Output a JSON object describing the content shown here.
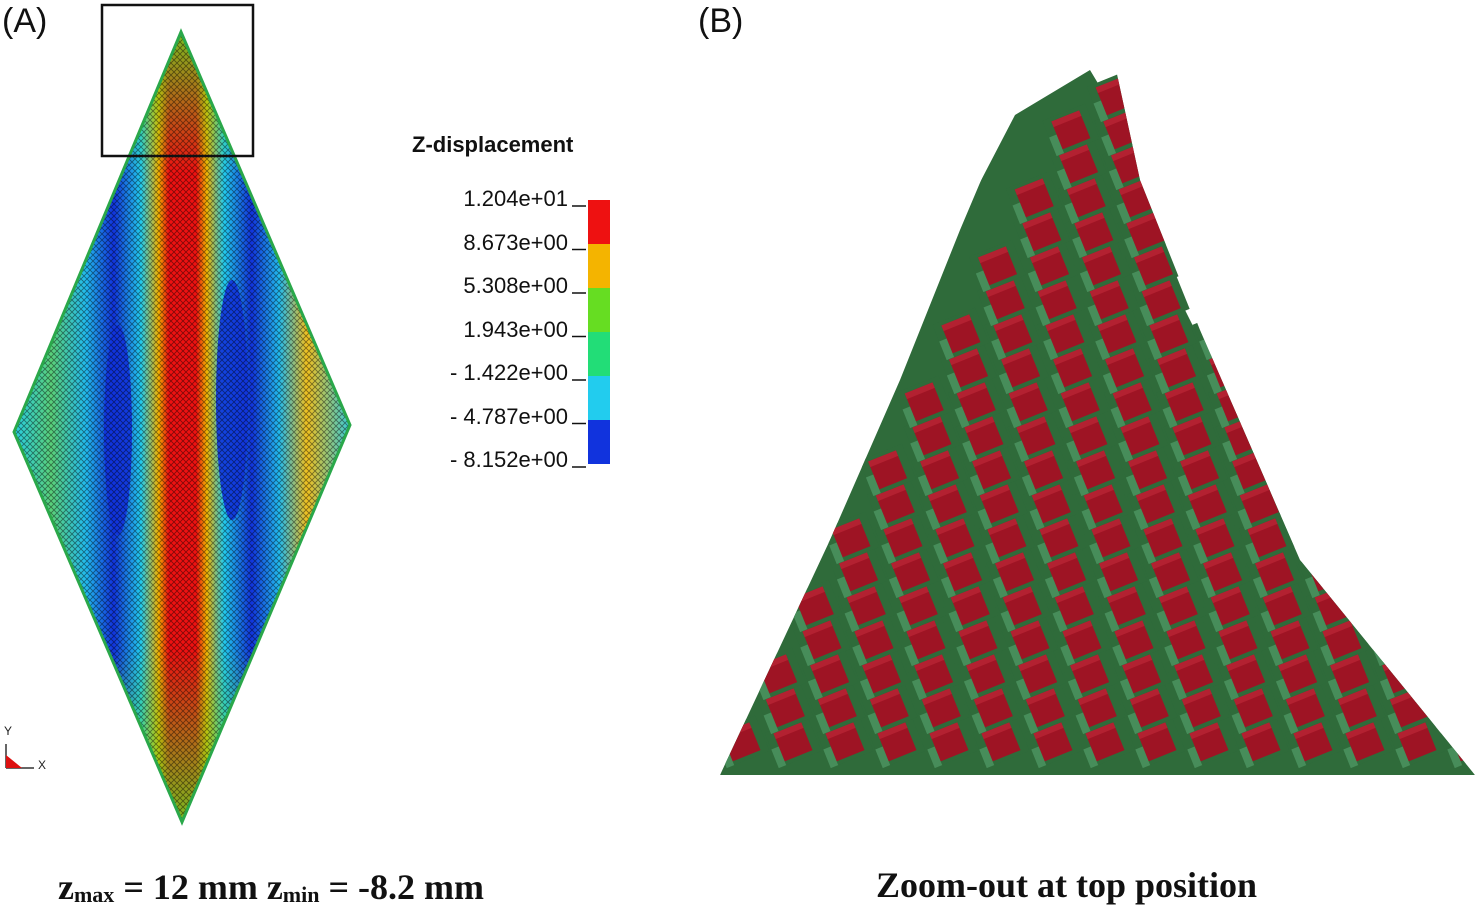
{
  "panels": {
    "a_label": "(A)",
    "b_label": "(B)"
  },
  "legend": {
    "title": "Z-displacement",
    "values": [
      "1.204e+01",
      "8.673e+00",
      "5.308e+00",
      "1.943e+00",
      "- 1.422e+00",
      "- 4.787e+00",
      "- 8.152e+00"
    ],
    "colors": [
      "#ee1111",
      "#f4b400",
      "#66dd22",
      "#22dd77",
      "#22ccee",
      "#1133dd"
    ]
  },
  "axes": {
    "y": "Y",
    "x": "X"
  },
  "caption_a": {
    "zmax_sym": "z",
    "zmax_sub": "max",
    "zmax_val": " = 12 mm ",
    "zmin_sym": "z",
    "zmin_sub": "min",
    "zmin_val": " = -8.2 mm"
  },
  "caption_b": "Zoom-out at top position",
  "colors": {
    "red_yarn": "#9e1424",
    "green_yarn": "#2f6b3a",
    "light_green": "#5fb07a"
  }
}
